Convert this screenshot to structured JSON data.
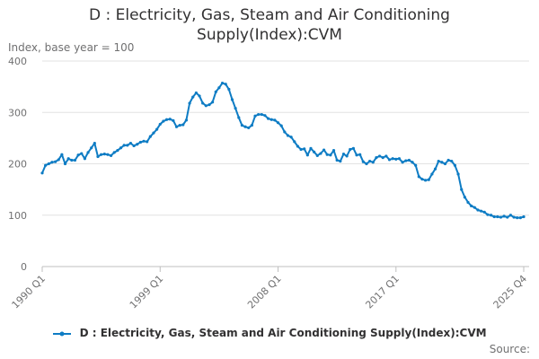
{
  "chart_data": {
    "type": "line",
    "title_line1": "D : Electricity, Gas, Steam and Air Conditioning",
    "title_line2": "Supply(Index):CVM",
    "ylabel": "Index, base year = 100",
    "ylim": [
      0,
      400
    ],
    "yticks": [
      "0",
      "100",
      "200",
      "300",
      "400"
    ],
    "xticks": [
      "1990 Q1",
      "1999 Q1",
      "2008 Q1",
      "2017 Q1",
      "2025 Q4"
    ],
    "legend": "D : Electricity, Gas, Steam and Air Conditioning Supply(Index):CVM",
    "source": "Source:",
    "color": "#0e7cc4",
    "series_start": "1990 Q1",
    "series": [
      {
        "name": "D : Electricity, Gas, Steam and Air Conditioning Supply(Index):CVM",
        "values": [
          182,
          197,
          200,
          203,
          204,
          208,
          218,
          200,
          210,
          207,
          207,
          217,
          220,
          210,
          222,
          231,
          240,
          214,
          218,
          219,
          218,
          216,
          222,
          226,
          231,
          236,
          236,
          240,
          235,
          238,
          242,
          244,
          243,
          253,
          260,
          267,
          277,
          283,
          286,
          287,
          284,
          272,
          275,
          276,
          285,
          318,
          330,
          338,
          332,
          318,
          313,
          315,
          320,
          340,
          348,
          357,
          355,
          345,
          325,
          308,
          290,
          275,
          272,
          270,
          275,
          293,
          296,
          296,
          294,
          288,
          286,
          285,
          280,
          274,
          262,
          255,
          252,
          243,
          234,
          228,
          229,
          217,
          230,
          223,
          216,
          220,
          227,
          218,
          217,
          226,
          207,
          205,
          219,
          215,
          228,
          230,
          217,
          218,
          204,
          200,
          205,
          203,
          212,
          215,
          212,
          215,
          208,
          210,
          209,
          210,
          203,
          206,
          207,
          203,
          197,
          175,
          170,
          168,
          169,
          180,
          190,
          205,
          203,
          200,
          207,
          205,
          197,
          180,
          150,
          135,
          125,
          118,
          115,
          110,
          108,
          106,
          101,
          100,
          97,
          97,
          96,
          98,
          96,
          100,
          96,
          95,
          95,
          97
        ]
      }
    ]
  }
}
